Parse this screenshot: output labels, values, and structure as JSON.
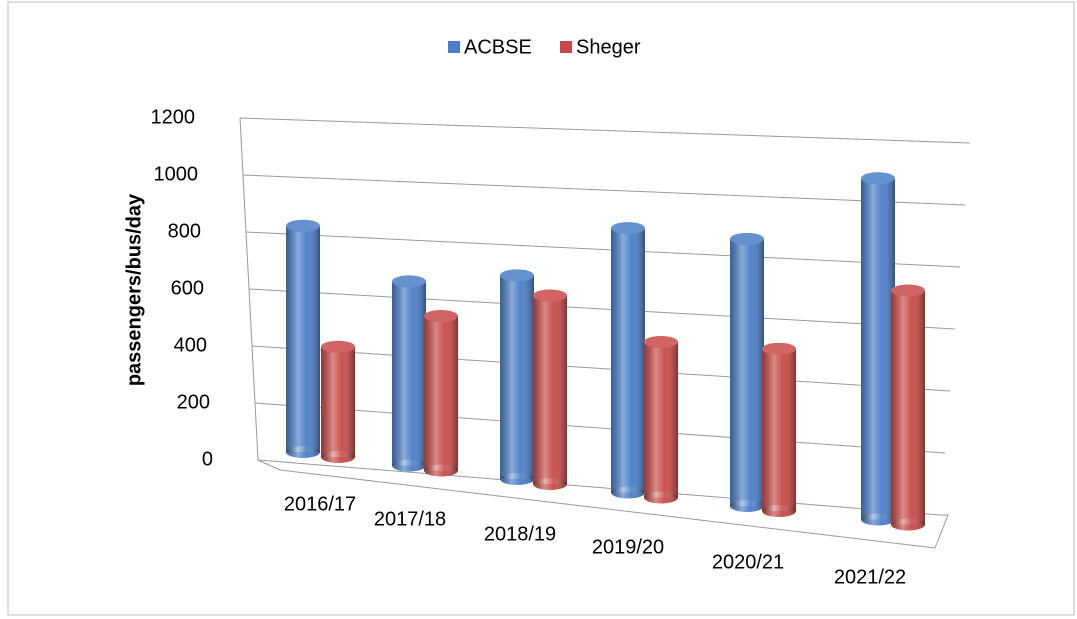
{
  "chart_data": {
    "type": "bar3d",
    "categories": [
      "2016/17",
      "2017/18",
      "2018/19",
      "2019/20",
      "2020/21",
      "2021/22"
    ],
    "series": [
      {
        "name": "ACBSE",
        "color": "#4a7ec8",
        "values": [
          780,
          620,
          670,
          850,
          840,
          1050
        ]
      },
      {
        "name": "Sheger",
        "color": "#c84a48",
        "values": [
          380,
          520,
          620,
          500,
          510,
          720
        ]
      }
    ],
    "y_label": "passengers/bus/day",
    "ylim": [
      0,
      1200
    ],
    "yticks": [
      0,
      200,
      400,
      600,
      800,
      1000,
      1200
    ],
    "grid": true,
    "legend": "top"
  }
}
